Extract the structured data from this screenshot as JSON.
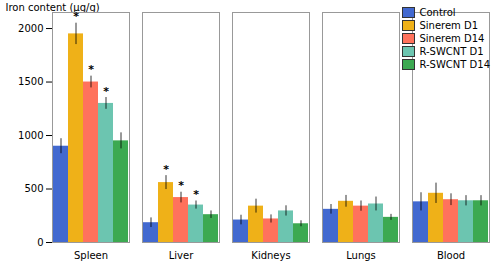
{
  "chart_data": {
    "type": "bar",
    "ylabel": "Iron content (μg/g)",
    "categories": [
      "Spleen",
      "Liver",
      "Kidneys",
      "Lungs",
      "Blood"
    ],
    "series": [
      {
        "name": "Control",
        "values": [
          900,
          185,
          210,
          310,
          380
        ],
        "errors": [
          70,
          45,
          45,
          45,
          85
        ]
      },
      {
        "name": "Sinerem D1",
        "values": [
          1950,
          560,
          340,
          385,
          460
        ],
        "errors": [
          100,
          65,
          65,
          55,
          95
        ]
      },
      {
        "name": "Sinerem D14",
        "values": [
          1500,
          420,
          220,
          340,
          400
        ],
        "errors": [
          55,
          50,
          38,
          48,
          55
        ]
      },
      {
        "name": "R-SWCNT D1",
        "values": [
          1300,
          350,
          295,
          360,
          390
        ],
        "errors": [
          55,
          38,
          48,
          65,
          48
        ]
      },
      {
        "name": "R-SWCNT D14",
        "values": [
          950,
          260,
          175,
          235,
          390
        ],
        "errors": [
          75,
          35,
          28,
          28,
          48
        ]
      }
    ],
    "annotations": [
      {
        "text": "*",
        "category": "Spleen",
        "series": "Sinerem D1"
      },
      {
        "text": "*",
        "category": "Spleen",
        "series": "Sinerem D14"
      },
      {
        "text": "*",
        "category": "Spleen",
        "series": "R-SWCNT D1"
      },
      {
        "text": "*",
        "category": "Liver",
        "series": "Sinerem D1"
      },
      {
        "text": "*",
        "category": "Liver",
        "series": "Sinerem D14"
      },
      {
        "text": "*",
        "category": "Liver",
        "series": "R-SWCNT D1"
      }
    ],
    "ylim": [
      0,
      2150
    ],
    "yticks": [
      0,
      500,
      1000,
      1500,
      2000
    ],
    "grid": false,
    "legend": "upper right"
  }
}
